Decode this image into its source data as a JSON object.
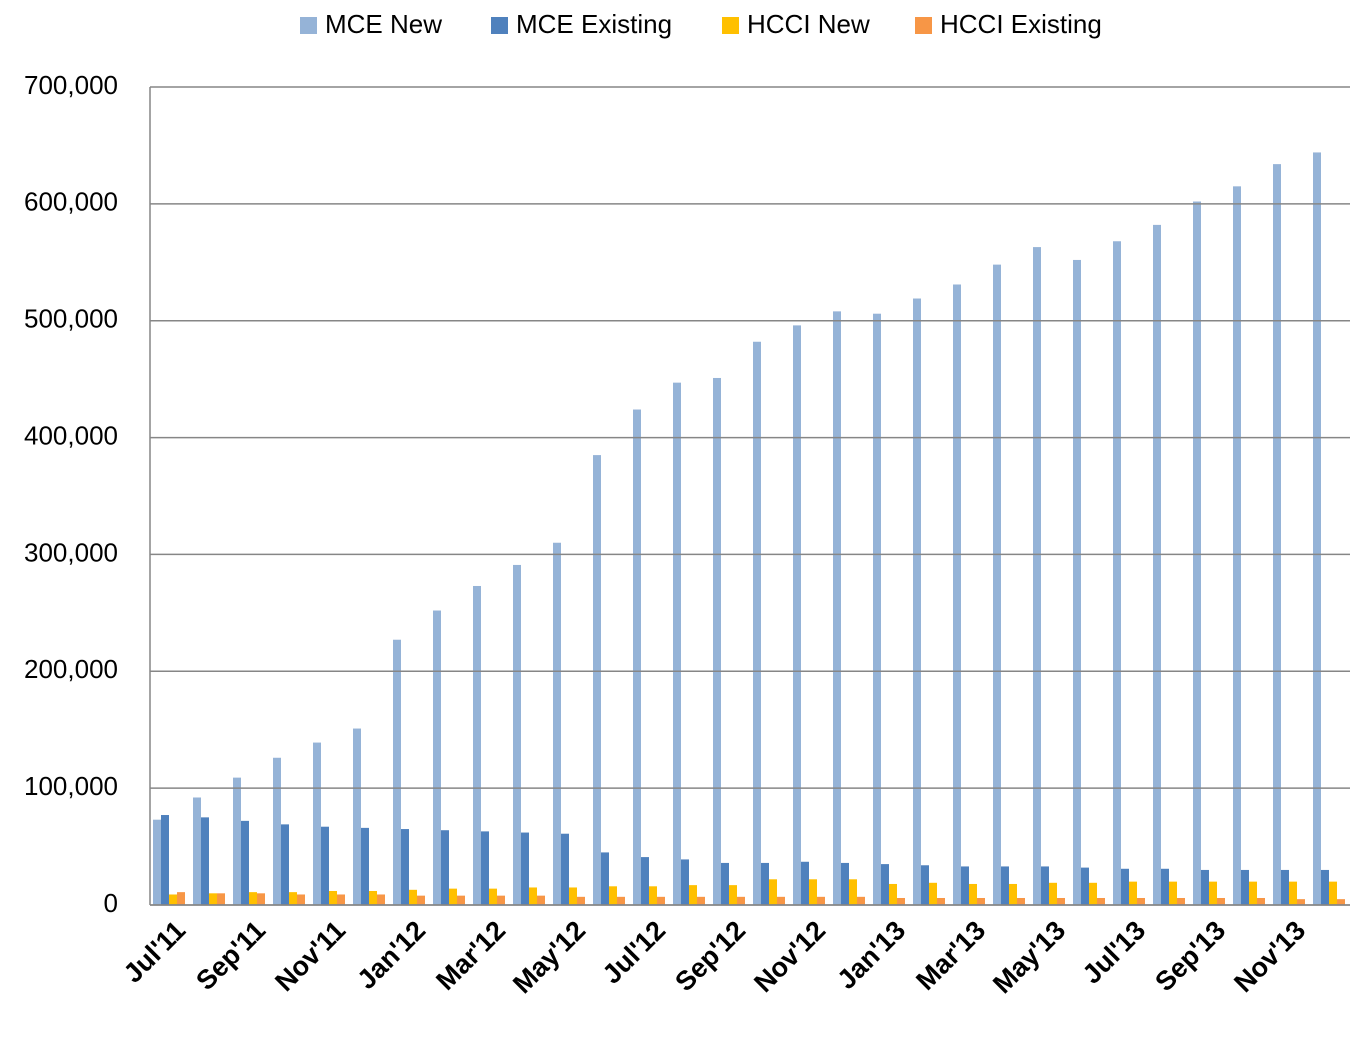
{
  "chart_data": {
    "type": "bar",
    "categories": [
      "Jul'11",
      null,
      "Sep'11",
      null,
      "Nov'11",
      null,
      "Jan'12",
      null,
      "Mar'12",
      null,
      "May'12",
      null,
      "Jul'12",
      null,
      "Sep'12",
      null,
      "Nov'12",
      null,
      "Jan'13",
      null,
      "Mar'13",
      null,
      "May'13",
      null,
      "Jul'13",
      null,
      "Sep'13",
      null,
      "Nov'13",
      null
    ],
    "series": [
      {
        "name": "MCE New",
        "color": "#95b3d7",
        "values": [
          73000,
          92000,
          109000,
          126000,
          139000,
          151000,
          227000,
          252000,
          273000,
          291000,
          310000,
          385000,
          424000,
          447000,
          451000,
          482000,
          496000,
          508000,
          506000,
          519000,
          531000,
          548000,
          563000,
          552000,
          568000,
          582000,
          602000,
          615000,
          634000,
          644000
        ]
      },
      {
        "name": "MCE Existing",
        "color": "#4f81bd",
        "values": [
          77000,
          75000,
          72000,
          69000,
          67000,
          66000,
          65000,
          64000,
          63000,
          62000,
          61000,
          45000,
          41000,
          39000,
          36000,
          36000,
          37000,
          36000,
          35000,
          34000,
          33000,
          33000,
          33000,
          32000,
          31000,
          31000,
          30000,
          30000,
          30000,
          30000
        ]
      },
      {
        "name": "HCCI New",
        "color": "#ffc000",
        "values": [
          9000,
          10000,
          11000,
          11000,
          12000,
          12000,
          13000,
          14000,
          14000,
          15000,
          15000,
          16000,
          16000,
          17000,
          17000,
          22000,
          22000,
          22000,
          18000,
          19000,
          18000,
          18000,
          19000,
          19000,
          20000,
          20000,
          20000,
          20000,
          20000,
          20000
        ]
      },
      {
        "name": "HCCI Existing",
        "color": "#f79646",
        "values": [
          11000,
          10000,
          10000,
          9000,
          9000,
          9000,
          8000,
          8000,
          8000,
          8000,
          7000,
          7000,
          7000,
          7000,
          7000,
          7000,
          7000,
          7000,
          6000,
          6000,
          6000,
          6000,
          6000,
          6000,
          6000,
          6000,
          6000,
          6000,
          5000,
          5000
        ]
      }
    ],
    "ylim": [
      0,
      700000
    ],
    "yticks": [
      0,
      {
        "value": 100000,
        "label": "100,000"
      },
      {
        "value": 200000,
        "label": "200,000"
      },
      {
        "value": 300000,
        "label": "300,000"
      },
      {
        "value": 400000,
        "label": "400,000"
      },
      {
        "value": 500000,
        "label": "500,000"
      },
      {
        "value": 600000,
        "label": "600,000"
      },
      {
        "value": 700000,
        "label": "700,000"
      }
    ],
    "grid": true,
    "legend": "top"
  }
}
